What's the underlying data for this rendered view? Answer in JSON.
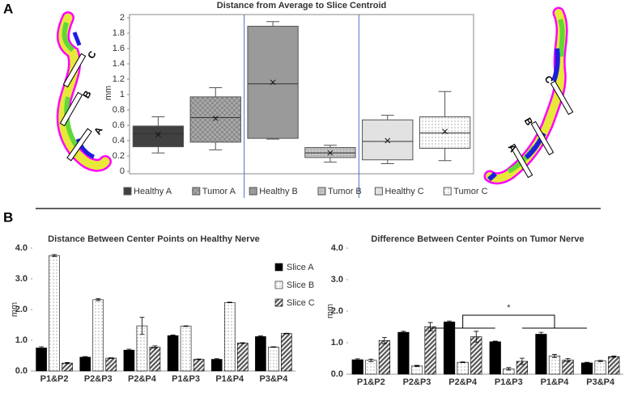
{
  "panel_labels": [
    "A",
    "B"
  ],
  "nerve_images": [
    {
      "labels": [
        "C",
        "B",
        "A"
      ]
    },
    {
      "labels": [
        "C",
        "B",
        "A"
      ]
    }
  ],
  "chart_data": [
    {
      "type": "box",
      "title": "Distance from Average to Slice Centroid",
      "y_label": "mm",
      "ylim": [
        0,
        2
      ],
      "yticks": [
        0,
        0.2,
        0.4,
        0.6,
        0.8,
        1,
        1.2,
        1.4,
        1.6,
        1.8,
        2
      ],
      "boxes": [
        {
          "name": "Healthy A",
          "color": "#404040",
          "pattern": "solid",
          "min": 0.24,
          "q1": 0.32,
          "median": 0.49,
          "q3": 0.59,
          "max": 0.71,
          "mean": 0.48
        },
        {
          "name": "Tumor A",
          "color": "#8c8c8c",
          "pattern": "checker",
          "min": 0.28,
          "q1": 0.38,
          "median": 0.7,
          "q3": 0.97,
          "max": 1.09,
          "mean": 0.69
        },
        {
          "name": "Healthy B",
          "color": "#9a9a9a",
          "pattern": "solid",
          "min": 0.42,
          "q1": 0.43,
          "median": 1.14,
          "q3": 1.89,
          "max": 1.95,
          "mean": 1.16
        },
        {
          "name": "Tumor B",
          "color": "#c8c8c8",
          "pattern": "grid",
          "min": 0.12,
          "q1": 0.18,
          "median": 0.24,
          "q3": 0.31,
          "max": 0.34,
          "mean": 0.24
        },
        {
          "name": "Healthy C",
          "color": "#e2e2e2",
          "pattern": "solid",
          "min": 0.1,
          "q1": 0.15,
          "median": 0.39,
          "q3": 0.67,
          "max": 0.73,
          "mean": 0.4
        },
        {
          "name": "Tumor C",
          "color": "#f2f2f2",
          "pattern": "dots",
          "min": 0.14,
          "q1": 0.3,
          "median": 0.5,
          "q3": 0.71,
          "max": 1.04,
          "mean": 0.52
        }
      ]
    },
    {
      "type": "bar",
      "title": "Distance Between Center Points on Healthy Nerve",
      "y_label": "mm",
      "categories": [
        "P1&P2",
        "P2&P3",
        "P2&P4",
        "P1&P3",
        "P1&P4",
        "P3&P4"
      ],
      "ylim": [
        0,
        4
      ],
      "yticks": [
        {
          "value": 0,
          "label": "0.0"
        },
        {
          "value": 1,
          "label": "1.0"
        },
        {
          "value": 2,
          "label": "2.0"
        },
        {
          "value": 3,
          "label": "3.0"
        },
        {
          "value": 4,
          "label": "4.0"
        }
      ],
      "legend": "upper right",
      "series": [
        {
          "name": "Slice A",
          "color": "#000000",
          "pattern": "solid",
          "values": [
            0.75,
            0.45,
            0.68,
            1.15,
            0.38,
            1.12
          ],
          "errors": [
            0.04,
            0.02,
            0.03,
            0.02,
            0.02,
            0.02
          ]
        },
        {
          "name": "Slice B",
          "color": "#ffffff",
          "pattern": "dots",
          "values": [
            3.76,
            2.32,
            1.47,
            1.46,
            2.23,
            0.78
          ],
          "errors": [
            0.03,
            0.03,
            0.28,
            0.01,
            0.01,
            0.01
          ]
        },
        {
          "name": "Slice C",
          "color": "#8a8a8a",
          "pattern": "hatch",
          "values": [
            0.26,
            0.42,
            0.78,
            0.38,
            0.91,
            1.22
          ],
          "errors": [
            0.02,
            0.01,
            0.04,
            0.01,
            0.01,
            0.01
          ]
        }
      ]
    },
    {
      "type": "bar",
      "title": "Difference Between Center Points on Tumor Nerve",
      "y_label": "mm",
      "categories": [
        "P1&P2",
        "P2&P3",
        "P2&P4",
        "P1&P3",
        "P1&P4",
        "P3&P4"
      ],
      "ylim": [
        0,
        4
      ],
      "yticks": [
        {
          "value": 0,
          "label": "0.0"
        },
        {
          "value": 1,
          "label": "1.0"
        },
        {
          "value": 2,
          "label": "2.0"
        },
        {
          "value": 3,
          "label": "3.0"
        },
        {
          "value": 4,
          "label": "4.0"
        }
      ],
      "annotations": [
        {
          "text": "*"
        }
      ],
      "series": [
        {
          "color": "#000000",
          "pattern": "solid",
          "values": [
            0.46,
            1.33,
            1.66,
            1.03,
            1.27,
            0.36
          ],
          "errors": [
            0.03,
            0.03,
            0.03,
            0.02,
            0.06,
            0.02
          ]
        },
        {
          "color": "#ffffff",
          "pattern": "dots",
          "values": [
            0.44,
            0.26,
            0.38,
            0.17,
            0.58,
            0.42
          ],
          "errors": [
            0.04,
            0.02,
            0.01,
            0.04,
            0.05,
            0.02
          ]
        },
        {
          "color": "#8a8a8a",
          "pattern": "hatch",
          "values": [
            1.07,
            1.51,
            1.19,
            0.41,
            0.45,
            0.56
          ],
          "errors": [
            0.1,
            0.13,
            0.17,
            0.1,
            0.05,
            0.02
          ]
        }
      ]
    }
  ]
}
